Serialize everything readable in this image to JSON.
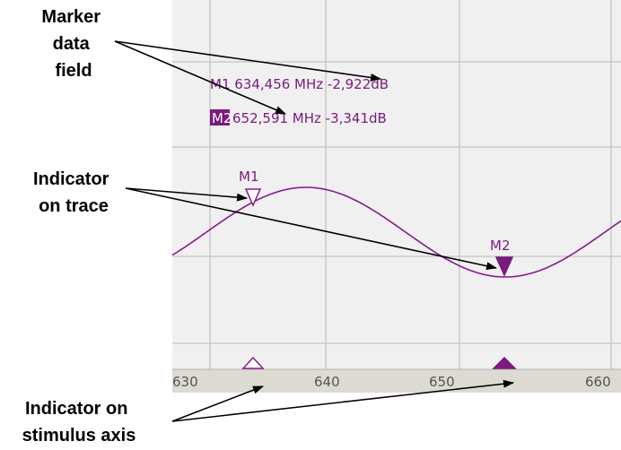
{
  "callouts": {
    "marker_field": [
      "Marker",
      "data",
      "field"
    ],
    "indicator_trace": [
      "Indicator",
      "on trace"
    ],
    "indicator_axis": [
      "Indicator on",
      "stimulus axis"
    ]
  },
  "markers": {
    "m1": {
      "label": "M1",
      "line": "M1 634,456 MHz -2,922dB"
    },
    "m2": {
      "label": "M2",
      "freq_text": "652,591 MHz -3,341dB"
    }
  },
  "axis": {
    "ticks": [
      "630",
      "640",
      "650",
      "660"
    ]
  },
  "colors": {
    "trace": "#8a1a8f",
    "marker_text": "#7a1a7f",
    "grid": "#c4c4c4",
    "plot_bg": "#f0f0f0",
    "axis_bg": "#dddad2"
  }
}
